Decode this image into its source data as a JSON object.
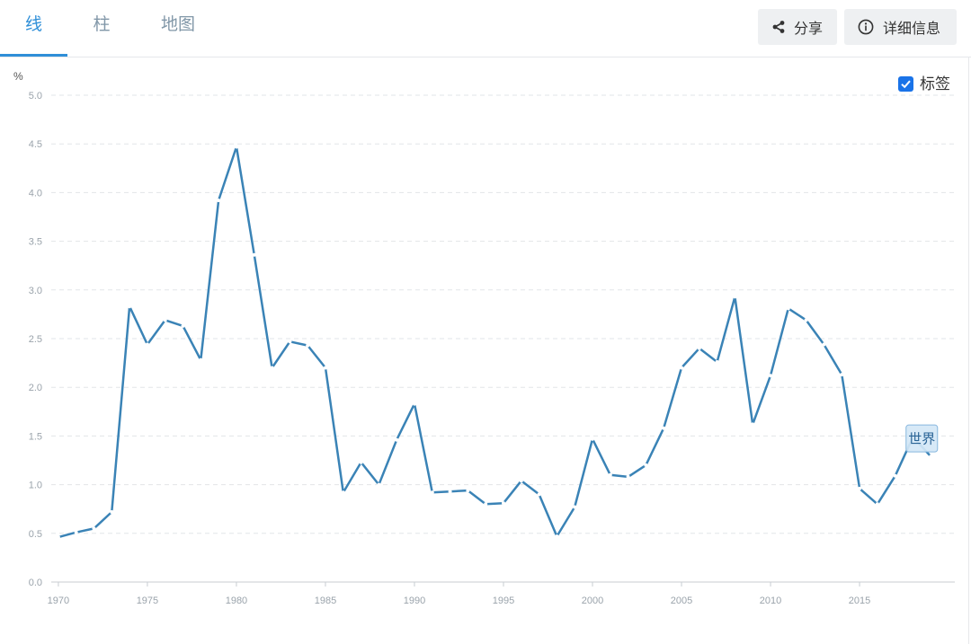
{
  "tabs": [
    {
      "label": "线",
      "active": true
    },
    {
      "label": "柱",
      "active": false
    },
    {
      "label": "地图",
      "active": false
    }
  ],
  "actions": {
    "share_label": "分享",
    "share_icon": "share-icon",
    "details_label": "详细信息",
    "details_icon": "info-icon"
  },
  "labels_toggle": {
    "label": "标签",
    "checked": true,
    "icon": "check-icon"
  },
  "colors": {
    "accent": "#2f8fd8",
    "tab_inactive": "#8197a8",
    "line": "#3a83b6",
    "button_bg": "#eef0f2",
    "checkbox": "#1a73e8",
    "series_label_bg": "#d4e7f6",
    "series_label_border": "#86b6de",
    "series_label_text": "#2a6496"
  },
  "chart_data": {
    "type": "line",
    "ylabel": "%",
    "ylim": [
      0,
      5
    ],
    "xlim": [
      1969.6,
      2020.35
    ],
    "grid": true,
    "yticks": [
      "0.0",
      "0.5",
      "1.0",
      "1.5",
      "2.0",
      "2.5",
      "3.0",
      "3.5",
      "4.0",
      "4.5",
      "5.0"
    ],
    "xticks": [
      "1970",
      "1975",
      "1980",
      "1985",
      "1990",
      "1995",
      "2000",
      "2005",
      "2010",
      "2015"
    ],
    "x": [
      1970,
      1971,
      1972,
      1973,
      1974,
      1975,
      1976,
      1977,
      1978,
      1979,
      1980,
      1981,
      1982,
      1983,
      1984,
      1985,
      1986,
      1987,
      1988,
      1989,
      1990,
      1991,
      1992,
      1993,
      1994,
      1995,
      1996,
      1997,
      1998,
      1999,
      2000,
      2001,
      2002,
      2003,
      2004,
      2005,
      2006,
      2007,
      2008,
      2009,
      2010,
      2011,
      2012,
      2013,
      2014,
      2015,
      2016,
      2017,
      2018,
      2019
    ],
    "series": [
      {
        "name": "世界",
        "label_position": "end",
        "values": [
          0.46,
          0.51,
          0.55,
          0.72,
          2.83,
          2.44,
          2.69,
          2.63,
          2.28,
          3.92,
          4.47,
          3.36,
          2.2,
          2.47,
          2.43,
          2.2,
          0.92,
          1.23,
          1.0,
          1.46,
          1.83,
          0.92,
          0.93,
          0.94,
          0.8,
          0.81,
          1.04,
          0.9,
          0.47,
          0.77,
          1.47,
          1.1,
          1.08,
          1.2,
          1.58,
          2.2,
          2.4,
          2.26,
          2.93,
          1.62,
          2.12,
          2.81,
          2.69,
          2.44,
          2.13,
          0.96,
          0.8,
          1.09,
          1.49,
          1.29
        ]
      }
    ]
  }
}
